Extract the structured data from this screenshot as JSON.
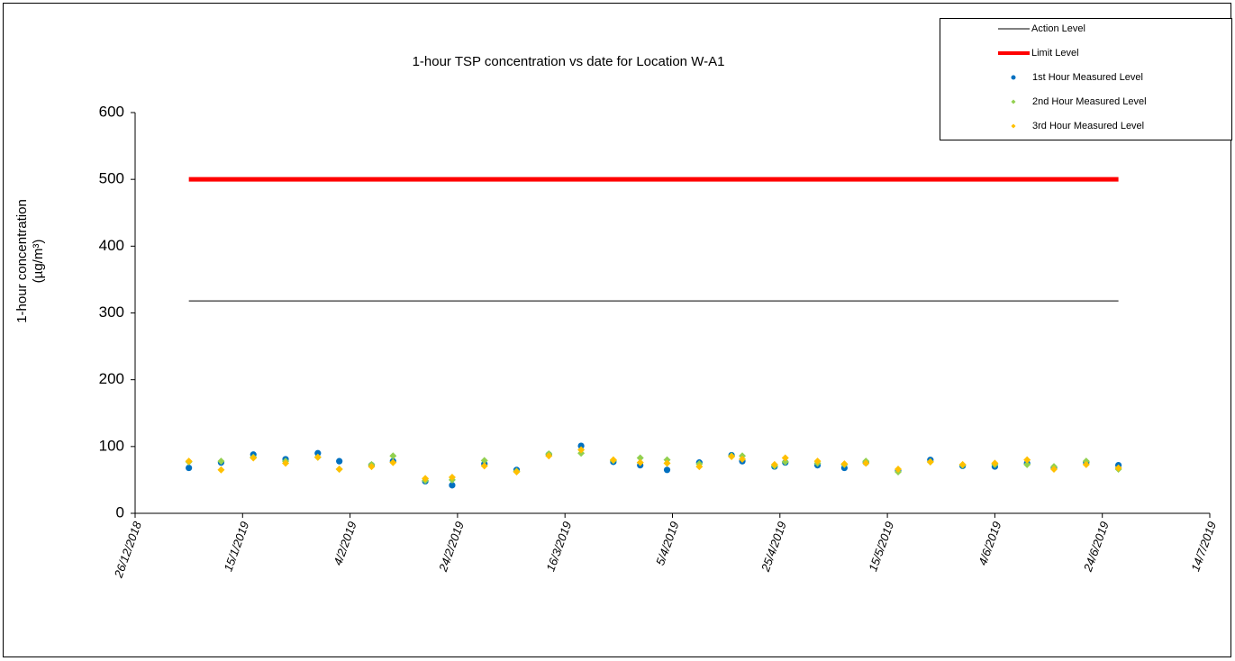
{
  "chart_data": {
    "type": "scatter",
    "title": "1-hour TSP concentration vs date for Location W-A1",
    "ylabel": [
      "1-hour concentration",
      "(µg/m³)"
    ],
    "x": [
      "2019-01-05",
      "2019-01-11",
      "2019-01-17",
      "2019-01-23",
      "2019-01-29",
      "2019-02-02",
      "2019-02-08",
      "2019-02-12",
      "2019-02-18",
      "2019-02-23",
      "2019-03-01",
      "2019-03-07",
      "2019-03-13",
      "2019-03-19",
      "2019-03-25",
      "2019-03-30",
      "2019-04-04",
      "2019-04-10",
      "2019-04-16",
      "2019-04-18",
      "2019-04-24",
      "2019-04-26",
      "2019-05-02",
      "2019-05-07",
      "2019-05-11",
      "2019-05-17",
      "2019-05-23",
      "2019-05-29",
      "2019-06-04",
      "2019-06-10",
      "2019-06-15",
      "2019-06-21",
      "2019-06-27"
    ],
    "series": [
      {
        "name": "Action Level",
        "color": "#000000",
        "marker": "line",
        "values": [
          318,
          318,
          318,
          318,
          318,
          318,
          318,
          318,
          318,
          318,
          318,
          318,
          318,
          318,
          318,
          318,
          318,
          318,
          318,
          318,
          318,
          318,
          318,
          318,
          318,
          318,
          318,
          318,
          318,
          318,
          318,
          318,
          318
        ]
      },
      {
        "name": "Limit Level",
        "color": "#ff0000",
        "marker": "thick-line",
        "values": [
          500,
          500,
          500,
          500,
          500,
          500,
          500,
          500,
          500,
          500,
          500,
          500,
          500,
          500,
          500,
          500,
          500,
          500,
          500,
          500,
          500,
          500,
          500,
          500,
          500,
          500,
          500,
          500,
          500,
          500,
          500,
          500,
          500
        ]
      },
      {
        "name": "1st Hour Measured Level",
        "color": "#0070c0",
        "marker": "circle",
        "values": [
          68,
          76,
          88,
          81,
          90,
          78,
          72,
          78,
          48,
          42,
          74,
          65,
          88,
          101,
          77,
          72,
          65,
          76,
          87,
          78,
          70,
          76,
          72,
          68,
          76,
          64,
          80,
          71,
          70,
          75,
          68,
          76,
          72
        ]
      },
      {
        "name": "2nd Hour Measured Level",
        "color": "#92d050",
        "marker": "diamond",
        "values": [
          77,
          78,
          84,
          78,
          84,
          66,
          73,
          86,
          49,
          50,
          79,
          63,
          89,
          90,
          79,
          83,
          80,
          74,
          86,
          86,
          71,
          77,
          75,
          73,
          78,
          62,
          77,
          72,
          73,
          73,
          70,
          78,
          66
        ]
      },
      {
        "name": "3rd Hour Measured Level",
        "color": "#ffc000",
        "marker": "diamond",
        "values": [
          78,
          65,
          83,
          75,
          84,
          66,
          70,
          76,
          52,
          54,
          71,
          62,
          86,
          95,
          80,
          76,
          75,
          70,
          85,
          81,
          73,
          83,
          78,
          74,
          75,
          66,
          77,
          73,
          75,
          80,
          66,
          73,
          68
        ]
      }
    ],
    "xlim": [
      "2018-12-26",
      "2019-07-14"
    ],
    "xticks": [
      {
        "value": "2018-12-26",
        "label": "26/12/2018"
      },
      {
        "value": "2019-01-15",
        "label": "15/1/2019"
      },
      {
        "value": "2019-02-04",
        "label": "4/2/2019"
      },
      {
        "value": "2019-02-24",
        "label": "24/2/2019"
      },
      {
        "value": "2019-03-16",
        "label": "16/3/2019"
      },
      {
        "value": "2019-04-05",
        "label": "5/4/2019"
      },
      {
        "value": "2019-04-25",
        "label": "25/4/2019"
      },
      {
        "value": "2019-05-15",
        "label": "15/5/2019"
      },
      {
        "value": "2019-06-04",
        "label": "4/6/2019"
      },
      {
        "value": "2019-06-24",
        "label": "24/6/2019"
      },
      {
        "value": "2019-07-14",
        "label": "14/7/2019"
      }
    ],
    "ylim": [
      0,
      600
    ],
    "yticks": [
      0,
      100,
      200,
      300,
      400,
      500,
      600
    ],
    "legend": "top-right"
  }
}
